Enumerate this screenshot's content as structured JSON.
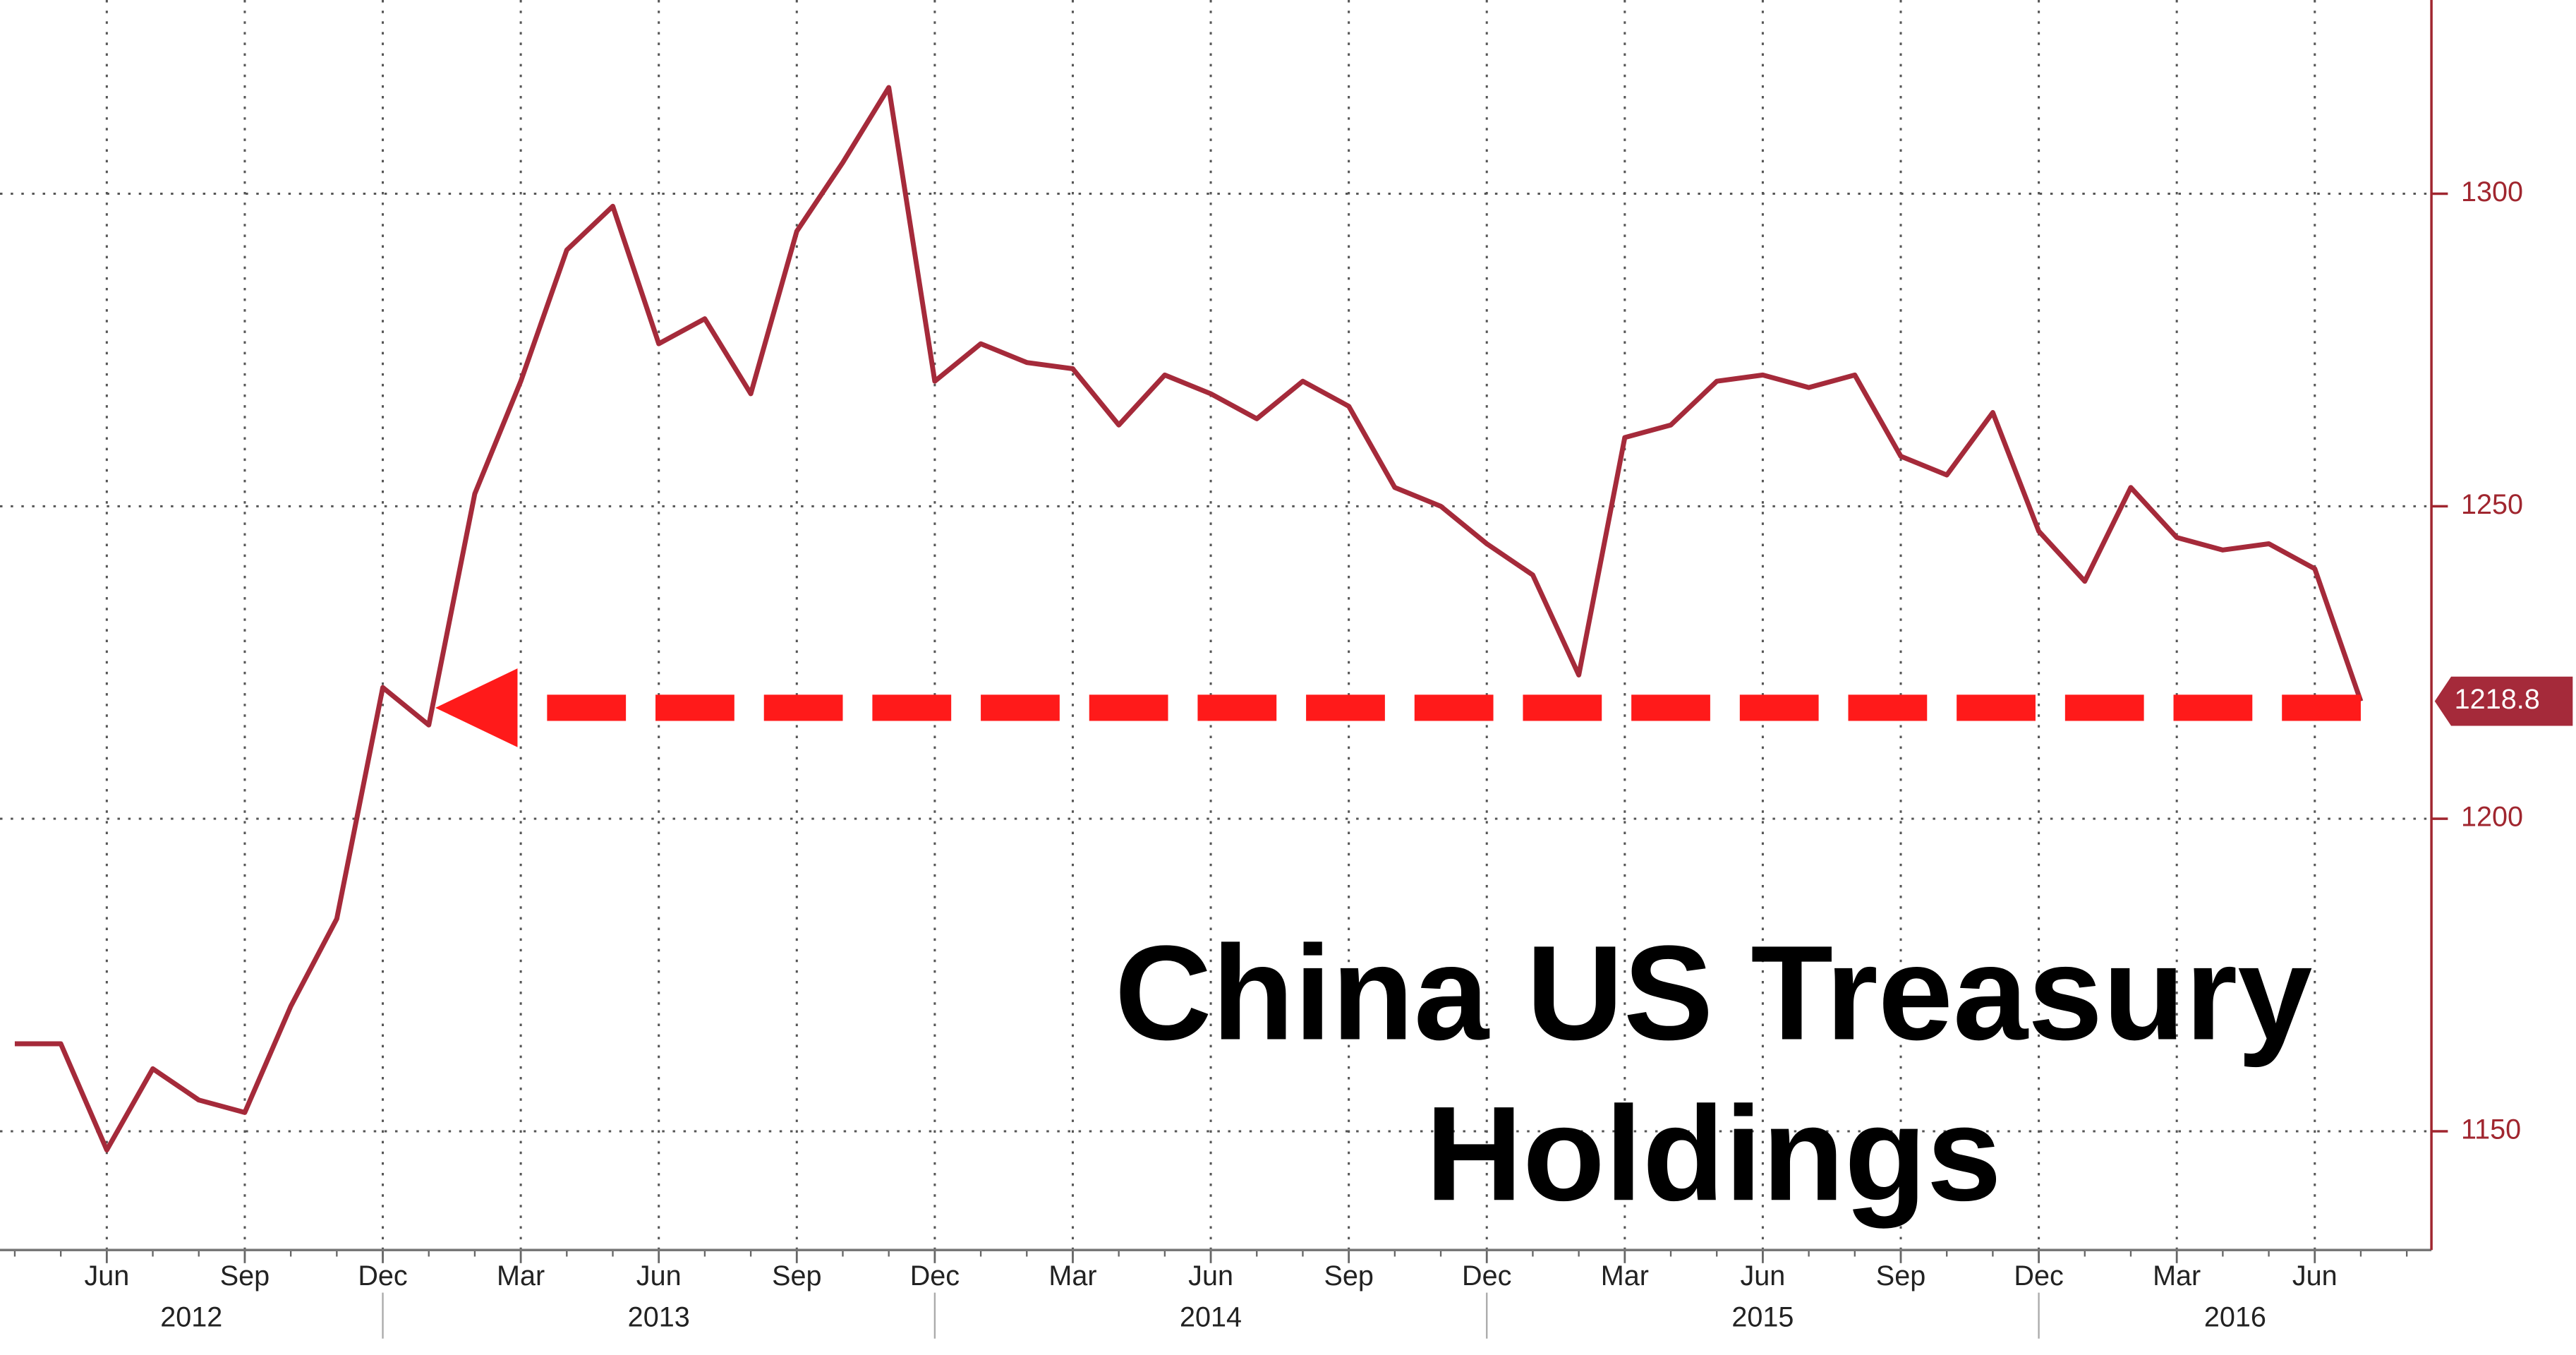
{
  "chart_data": {
    "type": "line",
    "title": "China US Treasury Holdings",
    "x": [
      "2012-04",
      "2012-05",
      "2012-06",
      "2012-07",
      "2012-08",
      "2012-09",
      "2012-10",
      "2012-11",
      "2012-12",
      "2013-01",
      "2013-02",
      "2013-03",
      "2013-04",
      "2013-05",
      "2013-06",
      "2013-07",
      "2013-08",
      "2013-09",
      "2013-10",
      "2013-11",
      "2013-12",
      "2014-01",
      "2014-02",
      "2014-03",
      "2014-04",
      "2014-05",
      "2014-06",
      "2014-07",
      "2014-08",
      "2014-09",
      "2014-10",
      "2014-11",
      "2014-12",
      "2015-01",
      "2015-02",
      "2015-03",
      "2015-04",
      "2015-05",
      "2015-06",
      "2015-07",
      "2015-08",
      "2015-09",
      "2015-10",
      "2015-11",
      "2015-12",
      "2016-01",
      "2016-02",
      "2016-03",
      "2016-04",
      "2016-05",
      "2016-06",
      "2016-07"
    ],
    "series": [
      {
        "name": "China US Treasury Holdings",
        "color": "#a52a3a",
        "values": [
          1164,
          1164,
          1147,
          1160,
          1155,
          1153,
          1170,
          1184,
          1221,
          1215,
          1252,
          1270,
          1291,
          1298,
          1276,
          1280,
          1268,
          1294,
          1305,
          1317,
          1270,
          1276,
          1273,
          1272,
          1263,
          1271,
          1268,
          1264,
          1270,
          1266,
          1253,
          1250,
          1244,
          1239,
          1223,
          1261,
          1263,
          1270,
          1271,
          1269,
          1271,
          1258,
          1255,
          1265,
          1246,
          1238,
          1253,
          1245,
          1243,
          1244,
          1240,
          1218.8
        ]
      }
    ],
    "xlim": [
      "2012-03",
      "2016-09"
    ],
    "xticks": [
      {
        "value": "2012-06",
        "label": "Jun"
      },
      {
        "value": "2012-09",
        "label": "Sep"
      },
      {
        "value": "2012-12",
        "label": "Dec"
      },
      {
        "value": "2013-03",
        "label": "Mar"
      },
      {
        "value": "2013-06",
        "label": "Jun"
      },
      {
        "value": "2013-09",
        "label": "Sep"
      },
      {
        "value": "2013-12",
        "label": "Dec"
      },
      {
        "value": "2014-03",
        "label": "Mar"
      },
      {
        "value": "2014-06",
        "label": "Jun"
      },
      {
        "value": "2014-09",
        "label": "Sep"
      },
      {
        "value": "2014-12",
        "label": "Dec"
      },
      {
        "value": "2015-03",
        "label": "Mar"
      },
      {
        "value": "2015-06",
        "label": "Jun"
      },
      {
        "value": "2015-09",
        "label": "Sep"
      },
      {
        "value": "2015-12",
        "label": "Dec"
      },
      {
        "value": "2016-03",
        "label": "Mar"
      },
      {
        "value": "2016-06",
        "label": "Jun"
      }
    ],
    "years": [
      "2012",
      "2013",
      "2014",
      "2015",
      "2016"
    ],
    "ylim": [
      1131,
      1331
    ],
    "yticks": [
      1150,
      1200,
      1250,
      1300
    ],
    "y_axis_side": "right",
    "grid": true
  }
}
